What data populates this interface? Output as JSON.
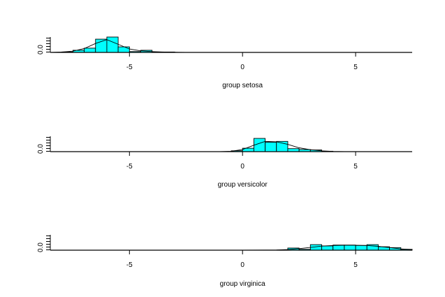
{
  "chart_data": [
    {
      "type": "histogram",
      "title": "",
      "xlabel": "group setosa",
      "ylabel": "",
      "xlim": [
        -8.5,
        7.5
      ],
      "x_ticks": [
        -5,
        0,
        5
      ],
      "x_tick_labels": [
        "-5",
        "0",
        "5"
      ],
      "y_tick_labels": [
        "0.0"
      ],
      "bar_color": "#00ffff",
      "bin_width": 0.5,
      "bins": [
        {
          "x0": -8.0,
          "x1": -7.5,
          "density": 0.02
        },
        {
          "x0": -7.5,
          "x1": -7.0,
          "density": 0.1
        },
        {
          "x0": -7.0,
          "x1": -6.5,
          "density": 0.2
        },
        {
          "x0": -6.5,
          "x1": -6.0,
          "density": 0.62
        },
        {
          "x0": -6.0,
          "x1": -5.5,
          "density": 0.72
        },
        {
          "x0": -5.5,
          "x1": -5.0,
          "density": 0.26
        },
        {
          "x0": -5.0,
          "x1": -4.5,
          "density": 0.04
        },
        {
          "x0": -4.5,
          "x1": -4.0,
          "density": 0.1
        },
        {
          "x0": -4.0,
          "x1": -3.5,
          "density": 0.02
        },
        {
          "x0": -3.5,
          "x1": -3.0,
          "density": 0.02
        }
      ],
      "density_curve": {
        "x": [
          -8.5,
          -8.0,
          -7.5,
          -7.0,
          -6.5,
          -6.0,
          -5.5,
          -5.0,
          -4.5,
          -4.0,
          -3.5,
          -3.0,
          -2.5,
          -2.0,
          0,
          5,
          7.5
        ],
        "y": [
          0.0,
          0.02,
          0.06,
          0.18,
          0.42,
          0.6,
          0.38,
          0.16,
          0.07,
          0.04,
          0.02,
          0.01,
          0.0,
          0.0,
          0.0,
          0.0,
          0.0
        ]
      }
    },
    {
      "type": "histogram",
      "title": "",
      "xlabel": "group versicolor",
      "ylabel": "",
      "xlim": [
        -8.5,
        7.5
      ],
      "x_ticks": [
        -5,
        0,
        5
      ],
      "x_tick_labels": [
        "-5",
        "0",
        "5"
      ],
      "y_tick_labels": [
        "0.0"
      ],
      "bar_color": "#00ffff",
      "bin_width": 0.5,
      "bins": [
        {
          "x0": -0.5,
          "x1": 0.0,
          "density": 0.04
        },
        {
          "x0": 0.0,
          "x1": 0.5,
          "density": 0.16
        },
        {
          "x0": 0.5,
          "x1": 1.0,
          "density": 0.62
        },
        {
          "x0": 1.0,
          "x1": 1.5,
          "density": 0.44
        },
        {
          "x0": 1.5,
          "x1": 2.0,
          "density": 0.48
        },
        {
          "x0": 2.0,
          "x1": 2.5,
          "density": 0.14
        },
        {
          "x0": 2.5,
          "x1": 3.0,
          "density": 0.1
        },
        {
          "x0": 3.0,
          "x1": 3.5,
          "density": 0.08
        },
        {
          "x0": 3.5,
          "x1": 4.0,
          "density": 0.02
        }
      ],
      "density_curve": {
        "x": [
          -8.5,
          -5.0,
          -1.0,
          -0.5,
          0.0,
          0.5,
          1.0,
          1.5,
          2.0,
          2.5,
          3.0,
          3.5,
          4.0,
          4.5,
          7.5
        ],
        "y": [
          0.0,
          0.0,
          0.0,
          0.02,
          0.1,
          0.3,
          0.48,
          0.46,
          0.34,
          0.18,
          0.09,
          0.04,
          0.01,
          0.0,
          0.0
        ]
      }
    },
    {
      "type": "histogram",
      "title": "",
      "xlabel": "group virginica",
      "ylabel": "",
      "xlim": [
        -8.5,
        7.5
      ],
      "x_ticks": [
        -5,
        0,
        5
      ],
      "x_tick_labels": [
        "-5",
        "0",
        "5"
      ],
      "y_tick_labels": [
        "0.0"
      ],
      "bar_color": "#00ffff",
      "bin_width": 0.5,
      "bins": [
        {
          "x0": 2.0,
          "x1": 2.5,
          "density": 0.1
        },
        {
          "x0": 2.5,
          "x1": 3.0,
          "density": 0.04
        },
        {
          "x0": 3.0,
          "x1": 3.5,
          "density": 0.26
        },
        {
          "x0": 3.5,
          "x1": 4.0,
          "density": 0.2
        },
        {
          "x0": 4.0,
          "x1": 4.5,
          "density": 0.24
        },
        {
          "x0": 4.5,
          "x1": 5.0,
          "density": 0.24
        },
        {
          "x0": 5.0,
          "x1": 5.5,
          "density": 0.22
        },
        {
          "x0": 5.5,
          "x1": 6.0,
          "density": 0.26
        },
        {
          "x0": 6.0,
          "x1": 6.5,
          "density": 0.16
        },
        {
          "x0": 6.5,
          "x1": 7.0,
          "density": 0.12
        },
        {
          "x0": 7.0,
          "x1": 7.5,
          "density": 0.04
        }
      ],
      "density_curve": {
        "x": [
          -8.5,
          -5.0,
          0.0,
          1.5,
          2.0,
          2.5,
          3.0,
          3.5,
          4.0,
          4.5,
          5.0,
          5.5,
          6.0,
          6.5,
          7.0,
          7.5
        ],
        "y": [
          0.0,
          0.0,
          0.0,
          0.01,
          0.03,
          0.07,
          0.13,
          0.19,
          0.22,
          0.23,
          0.23,
          0.22,
          0.18,
          0.12,
          0.06,
          0.03
        ]
      }
    }
  ]
}
